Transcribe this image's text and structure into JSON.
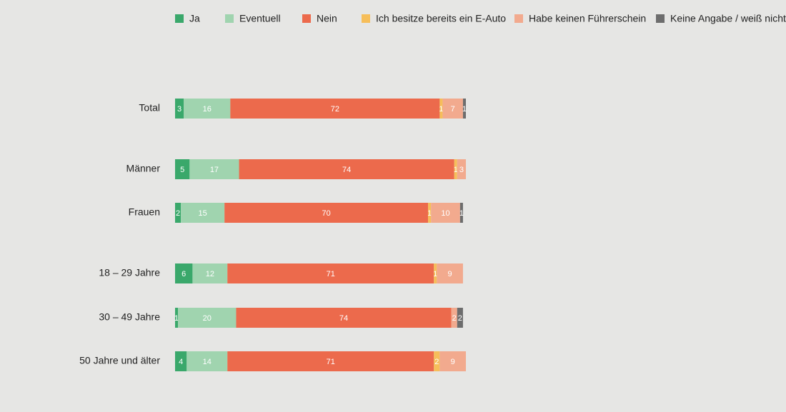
{
  "chart_data": {
    "type": "stacked-bar-horizontal",
    "categories": [
      "Total",
      "Männer",
      "Frauen",
      "18 – 29 Jahre",
      "30 – 49 Jahre",
      "50 Jahre und älter"
    ],
    "series": [
      {
        "name": "Ja",
        "color": "#3aa86b",
        "values": [
          3,
          5,
          2,
          6,
          1,
          4
        ]
      },
      {
        "name": "Eventuell",
        "color": "#a0d4af",
        "values": [
          16,
          17,
          15,
          12,
          20,
          14
        ]
      },
      {
        "name": "Nein",
        "color": "#ec6a4c",
        "values": [
          72,
          74,
          70,
          71,
          74,
          71
        ]
      },
      {
        "name": "Ich besitze bereits ein E-Auto",
        "color": "#f6be5a",
        "values": [
          1,
          1,
          1,
          1,
          null,
          2
        ]
      },
      {
        "name": "Habe keinen Führerschein",
        "color": "#f2aa8e",
        "values": [
          7,
          3,
          10,
          9,
          2,
          9
        ]
      },
      {
        "name": "Keine Angabe / weiß nicht",
        "color": "#6d6d6d",
        "values": [
          1,
          null,
          1,
          null,
          2,
          null
        ]
      }
    ],
    "xlim": [
      0,
      100
    ]
  }
}
